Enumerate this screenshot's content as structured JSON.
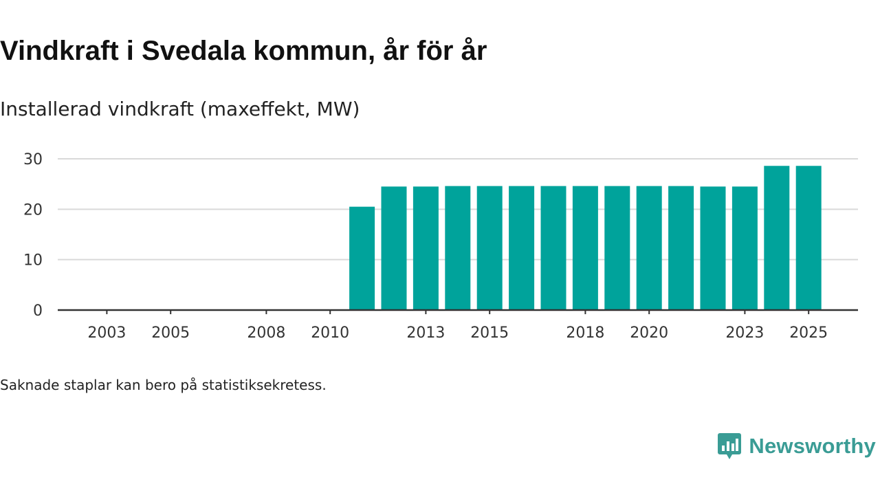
{
  "title": "Vindkraft i Svedala kommun, år för år",
  "subtitle": "Installerad vindkraft (maxeffekt, MW)",
  "footnote": "Saknade staplar kan bero på statistiksekretess.",
  "brand": {
    "name": "Newsworthy",
    "logo_icon": "newsworthy-bar-chart-icon"
  },
  "colors": {
    "bar": "#00a39b",
    "grid": "#d9d9d9",
    "axis": "#333333",
    "brand": "#3a9c95"
  },
  "chart_data": {
    "type": "bar",
    "title": "Vindkraft i Svedala kommun, år för år",
    "ylabel": "Installerad vindkraft (maxeffekt, MW)",
    "xlabel": "",
    "ylim": [
      0,
      30
    ],
    "yticks": [
      0,
      10,
      20,
      30
    ],
    "grid": true,
    "categories": [
      2002,
      2003,
      2004,
      2005,
      2006,
      2007,
      2008,
      2009,
      2010,
      2011,
      2012,
      2013,
      2014,
      2015,
      2016,
      2017,
      2018,
      2019,
      2020,
      2021,
      2022,
      2023,
      2024,
      2025
    ],
    "xtick_labels": [
      "2003",
      "2005",
      "2008",
      "2010",
      "2013",
      "2015",
      "2018",
      "2020",
      "2023",
      "2025"
    ],
    "series": [
      {
        "name": "Installerad vindkraft (MW)",
        "values": [
          0,
          0,
          0,
          0,
          0,
          0,
          0,
          0,
          0,
          20.5,
          24.5,
          24.5,
          24.6,
          24.6,
          24.6,
          24.6,
          24.6,
          24.6,
          24.6,
          24.6,
          24.5,
          24.5,
          28.6,
          28.6
        ]
      }
    ]
  }
}
